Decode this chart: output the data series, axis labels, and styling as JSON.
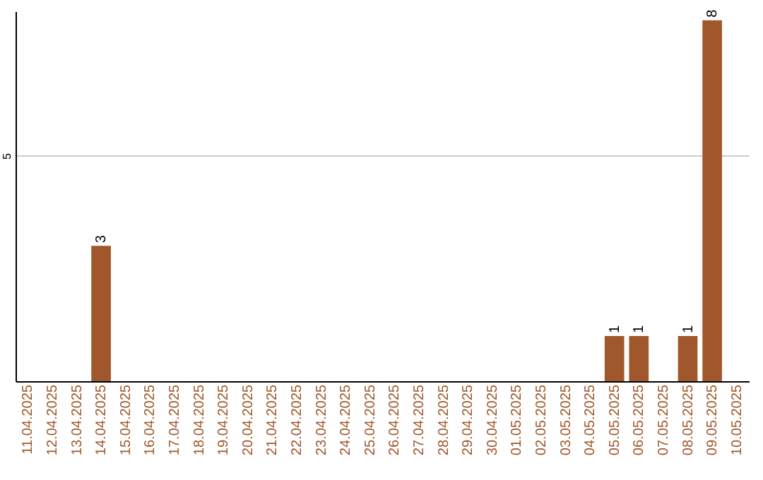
{
  "chart_data": {
    "type": "bar",
    "categories": [
      "11.04.2025",
      "12.04.2025",
      "13.04.2025",
      "14.04.2025",
      "15.04.2025",
      "16.04.2025",
      "17.04.2025",
      "18.04.2025",
      "19.04.2025",
      "20.04.2025",
      "21.04.2025",
      "22.04.2025",
      "23.04.2025",
      "24.04.2025",
      "25.04.2025",
      "26.04.2025",
      "27.04.2025",
      "28.04.2025",
      "29.04.2025",
      "30.04.2025",
      "01.05.2025",
      "02.05.2025",
      "03.05.2025",
      "04.05.2025",
      "05.05.2025",
      "06.05.2025",
      "07.05.2025",
      "08.05.2025",
      "09.05.2025",
      "10.05.2025"
    ],
    "values": [
      0,
      0,
      0,
      3,
      0,
      0,
      0,
      0,
      0,
      0,
      0,
      0,
      0,
      0,
      0,
      0,
      0,
      0,
      0,
      0,
      0,
      0,
      0,
      0,
      1,
      1,
      0,
      1,
      8,
      0
    ],
    "value_labels": [
      null,
      null,
      null,
      "3",
      null,
      null,
      null,
      null,
      null,
      null,
      null,
      null,
      null,
      null,
      null,
      null,
      null,
      null,
      null,
      null,
      null,
      null,
      null,
      null,
      "1",
      "1",
      null,
      "1",
      "8",
      null
    ],
    "color": "#a0572b",
    "ylim": [
      0,
      8.2
    ],
    "yticks": [
      {
        "value": 0,
        "label": null
      },
      5
    ],
    "grid": "y"
  }
}
